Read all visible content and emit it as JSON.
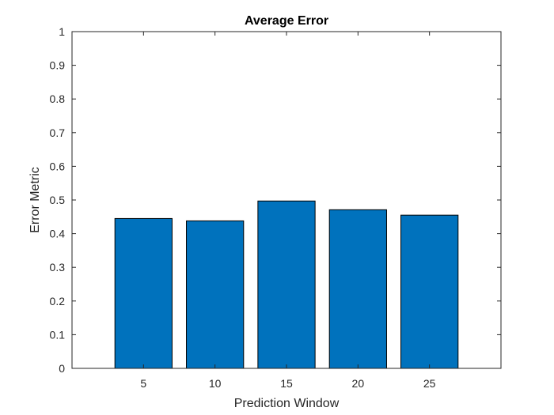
{
  "chart_data": {
    "type": "bar",
    "title": "Average Error",
    "xlabel": "Prediction Window",
    "ylabel": "Error Metric",
    "categories": [
      "5",
      "10",
      "15",
      "20",
      "25"
    ],
    "x": [
      5,
      10,
      15,
      20,
      25
    ],
    "values": [
      0.445,
      0.438,
      0.497,
      0.471,
      0.455
    ],
    "xlim": [
      0,
      30
    ],
    "ylim": [
      0,
      1
    ],
    "yticks": [
      0,
      0.1,
      0.2,
      0.3,
      0.4,
      0.5,
      0.6,
      0.7,
      0.8,
      0.9,
      1
    ],
    "ytick_labels": [
      "0",
      "0.1",
      "0.2",
      "0.3",
      "0.4",
      "0.5",
      "0.6",
      "0.7",
      "0.8",
      "0.9",
      "1"
    ],
    "grid": false,
    "legend": "none",
    "colors": {
      "bar_fill": "#0072bd",
      "bar_edge": "#000000",
      "axis": "#262626"
    }
  }
}
